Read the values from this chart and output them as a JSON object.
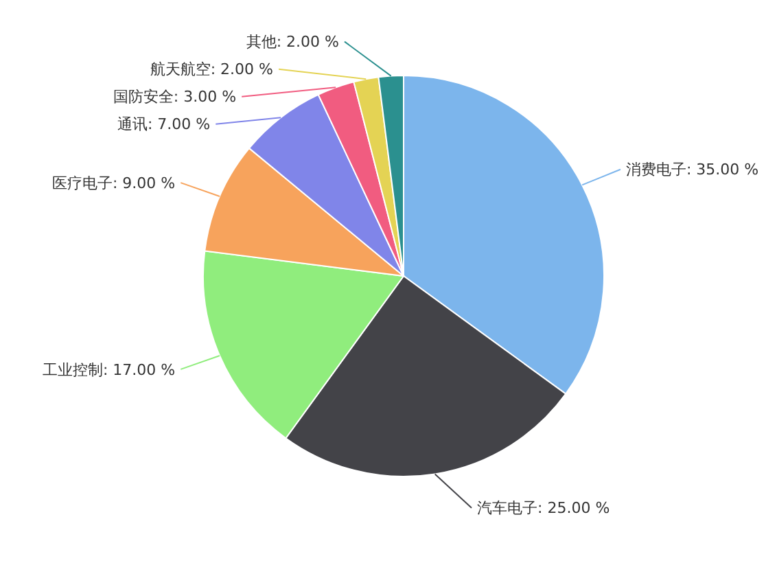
{
  "chart_data": {
    "type": "pie",
    "categories": [
      "消费电子",
      "汽车电子",
      "工业控制",
      "医疗电子",
      "通讯",
      "国防安全",
      "航天航空",
      "其他"
    ],
    "values": [
      35,
      25,
      17,
      9,
      7,
      3,
      2,
      2
    ],
    "value_labels": [
      "35.00 %",
      "25.00 %",
      "17.00 %",
      "9.00 %",
      "7.00 %",
      "3.00 %",
      "2.00 %",
      "2.00 %"
    ],
    "colors": [
      "#7cb5ec",
      "#434348",
      "#90ed7d",
      "#f7a35c",
      "#8085e9",
      "#f15c80",
      "#e4d354",
      "#2b908f"
    ]
  }
}
